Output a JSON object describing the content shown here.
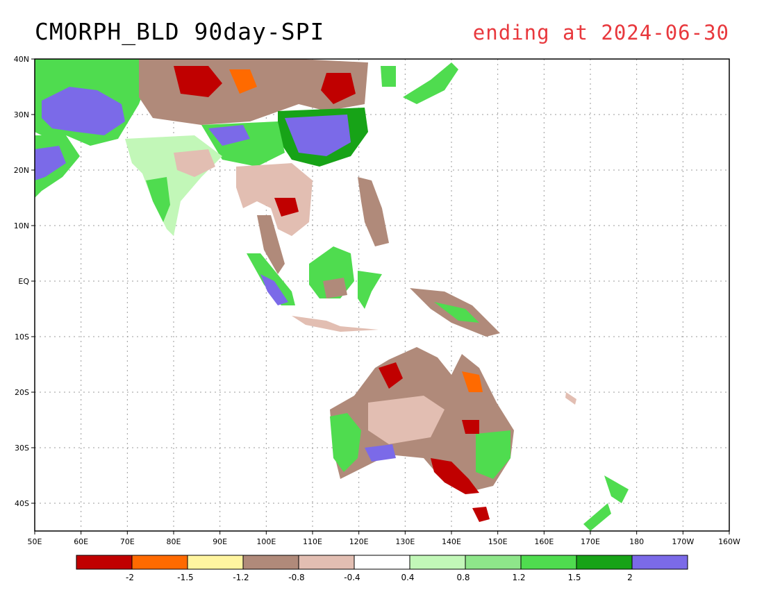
{
  "title": "CMORPH_BLD 90day-SPI",
  "subtitle": "ending at 2024-06-30",
  "map": {
    "lon_labels": [
      "50E",
      "60E",
      "70E",
      "80E",
      "90E",
      "100E",
      "110E",
      "120E",
      "130E",
      "140E",
      "150E",
      "160E",
      "170E",
      "180",
      "170W",
      "160W"
    ],
    "lat_labels": [
      "40N",
      "30N",
      "20N",
      "10N",
      "EQ",
      "10S",
      "20S",
      "30S",
      "40S"
    ]
  },
  "legend": {
    "tick_labels": [
      "-2",
      "-1.5",
      "-1.2",
      "-0.8",
      "-0.4",
      "0.4",
      "0.8",
      "1.2",
      "1.5",
      "2"
    ],
    "colors": [
      "#c00000",
      "#ff6a00",
      "#fff5a0",
      "#b08a7a",
      "#e2beb2",
      "#ffffff",
      "#c2f7b8",
      "#8ee68a",
      "#4fdc4f",
      "#17a317",
      "#7b6ae8"
    ]
  }
}
